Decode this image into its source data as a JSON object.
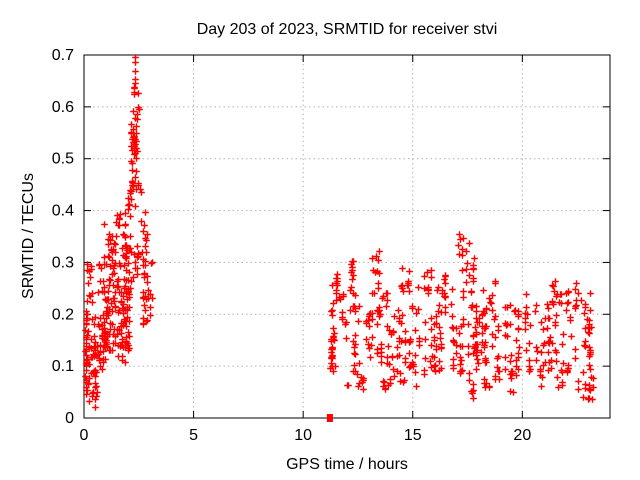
{
  "page": {
    "background": "#ffffff"
  },
  "chart_data": {
    "type": "scatter",
    "title": "Day 203 of 2023, SRMTID for receiver stvi",
    "xlabel": "GPS time / hours",
    "ylabel": "SRMTID / TECUs",
    "xlim": [
      0,
      24
    ],
    "ylim": [
      0,
      0.7
    ],
    "xticks": [
      0,
      5,
      10,
      15,
      20
    ],
    "yticks": [
      0,
      0.1,
      0.2,
      0.3,
      0.4,
      0.5,
      0.6,
      0.7
    ],
    "grid": true,
    "legend": "none",
    "marker": {
      "shape": "plus",
      "color": "#ff0000",
      "size": 7,
      "stroke_width": 1.4
    },
    "colors": {
      "points": "#ff0000",
      "grid": "#b3b3b3",
      "axis": "#000000",
      "text": "#000000"
    },
    "seed": 1337,
    "description": "Two clusters of SRMTID values: morning activity 0-3.1h peaking ~0.70 TECUs near 2.3h, data gap 3.1-11.2h, then continuous band 11.2-23.3h mostly 0.08-0.25 TECUs with spikes to ~0.35 near 17.3h",
    "special_points": [
      {
        "x": 11.22,
        "y": 0.0,
        "marker": "square"
      }
    ],
    "clusters": [
      {
        "x": [
          0.05,
          0.3
        ],
        "y": [
          0.03,
          0.22
        ],
        "n": 42,
        "col": 5
      },
      {
        "x": [
          0.1,
          0.4
        ],
        "y": [
          0.22,
          0.315
        ],
        "n": 12,
        "col": 1
      },
      {
        "x": [
          0.3,
          0.6
        ],
        "y": [
          0.02,
          0.1
        ],
        "n": 14,
        "col": 3
      },
      {
        "x": [
          0.3,
          0.95
        ],
        "y": [
          0.08,
          0.2
        ],
        "n": 48,
        "col": 2
      },
      {
        "x": [
          0.6,
          1.25
        ],
        "y": [
          0.24,
          0.31
        ],
        "n": 14,
        "col": 1
      },
      {
        "x": [
          0.9,
          1.3
        ],
        "y": [
          0.3,
          0.375
        ],
        "n": 14,
        "col": 2
      },
      {
        "x": [
          0.9,
          2.1
        ],
        "y": [
          0.13,
          0.25
        ],
        "n": 95,
        "col": 3
      },
      {
        "x": [
          1.55,
          1.9
        ],
        "y": [
          0.1,
          0.14
        ],
        "n": 7,
        "col": 1
      },
      {
        "x": [
          1.3,
          2.25
        ],
        "y": [
          0.25,
          0.34
        ],
        "n": 42,
        "col": 2
      },
      {
        "x": [
          1.45,
          2.1
        ],
        "y": [
          0.34,
          0.405
        ],
        "n": 18,
        "col": 2
      },
      {
        "x": [
          2.0,
          2.6
        ],
        "y": [
          0.405,
          0.5
        ],
        "n": 24,
        "col": 2
      },
      {
        "x": [
          2.05,
          2.6
        ],
        "y": [
          0.5,
          0.57
        ],
        "n": 28,
        "col": 3
      },
      {
        "x": [
          2.2,
          2.55
        ],
        "y": [
          0.57,
          0.635
        ],
        "n": 10,
        "col": 1
      },
      {
        "x": [
          2.25,
          2.42
        ],
        "y": [
          0.635,
          0.7
        ],
        "n": 7,
        "col": 2
      },
      {
        "x": [
          2.25,
          2.9
        ],
        "y": [
          0.27,
          0.405
        ],
        "n": 26,
        "col": 1
      },
      {
        "x": [
          2.6,
          3.1
        ],
        "y": [
          0.18,
          0.31
        ],
        "n": 24,
        "col": 2
      },
      {
        "x": [
          11.22,
          11.4
        ],
        "y": [
          0.08,
          0.27
        ],
        "n": 20,
        "col": 6
      },
      {
        "x": [
          11.3,
          23.3
        ],
        "y": [
          0.09,
          0.22
        ],
        "n": 330,
        "col": 3
      },
      {
        "x": [
          11.3,
          23.3
        ],
        "y": [
          0.2,
          0.255
        ],
        "n": 60,
        "col": 2
      },
      {
        "x": [
          11.35,
          23.3
        ],
        "y": [
          0.055,
          0.095
        ],
        "n": 48,
        "col": 2
      },
      {
        "x": [
          11.35,
          11.65
        ],
        "y": [
          0.22,
          0.29
        ],
        "n": 10,
        "col": 2
      },
      {
        "x": [
          12.0,
          12.4
        ],
        "y": [
          0.24,
          0.305
        ],
        "n": 10,
        "col": 2
      },
      {
        "x": [
          13.15,
          13.55
        ],
        "y": [
          0.24,
          0.325
        ],
        "n": 12,
        "col": 2
      },
      {
        "x": [
          14.4,
          14.85
        ],
        "y": [
          0.24,
          0.3
        ],
        "n": 10,
        "col": 2
      },
      {
        "x": [
          15.4,
          15.85
        ],
        "y": [
          0.24,
          0.3
        ],
        "n": 10,
        "col": 2
      },
      {
        "x": [
          16.1,
          16.55
        ],
        "y": [
          0.23,
          0.285
        ],
        "n": 8,
        "col": 2
      },
      {
        "x": [
          17.1,
          17.6
        ],
        "y": [
          0.26,
          0.355
        ],
        "n": 14,
        "col": 2
      },
      {
        "x": [
          17.6,
          18.2
        ],
        "y": [
          0.24,
          0.31
        ],
        "n": 8,
        "col": 2
      },
      {
        "x": [
          18.4,
          18.75
        ],
        "y": [
          0.22,
          0.275
        ],
        "n": 6,
        "col": 1
      },
      {
        "x": [
          21.2,
          21.8
        ],
        "y": [
          0.22,
          0.27
        ],
        "n": 8,
        "col": 2
      },
      {
        "x": [
          22.35,
          22.65
        ],
        "y": [
          0.22,
          0.265
        ],
        "n": 5,
        "col": 1
      },
      {
        "x": [
          12.5,
          12.75
        ],
        "y": [
          0.05,
          0.09
        ],
        "n": 4,
        "col": 1
      },
      {
        "x": [
          13.6,
          13.95
        ],
        "y": [
          0.04,
          0.085
        ],
        "n": 5,
        "col": 1
      },
      {
        "x": [
          17.7,
          18.1
        ],
        "y": [
          0.03,
          0.07
        ],
        "n": 6,
        "col": 2
      },
      {
        "x": [
          19.4,
          19.95
        ],
        "y": [
          0.05,
          0.09
        ],
        "n": 6,
        "col": 1
      },
      {
        "x": [
          22.7,
          23.35
        ],
        "y": [
          0.03,
          0.09
        ],
        "n": 14,
        "col": 2
      }
    ]
  }
}
